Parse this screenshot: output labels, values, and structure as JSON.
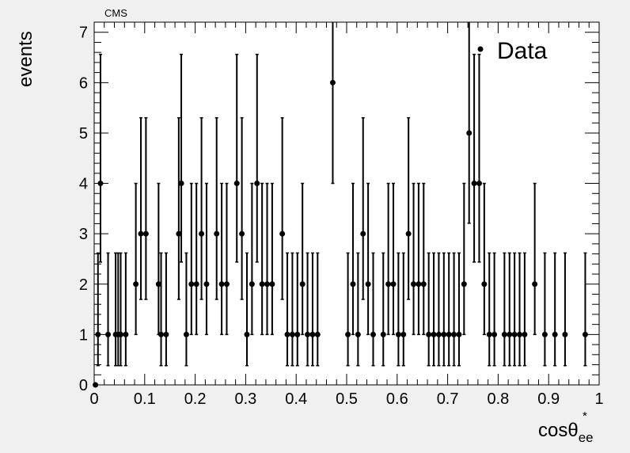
{
  "chart_data": {
    "type": "scatter",
    "experiment_label": "CMS",
    "ylabel": "events",
    "xlabel_main": "cosθ",
    "xlabel_sub": "ee",
    "xlabel_sup": "*",
    "legend": [
      "Data"
    ],
    "legend_position": "top-right",
    "xlim": [
      0,
      1
    ],
    "ylim": [
      0,
      7.2
    ],
    "x_ticks": [
      "0",
      "0.1",
      "0.2",
      "0.3",
      "0.4",
      "0.5",
      "0.6",
      "0.7",
      "0.8",
      "0.9",
      "1"
    ],
    "y_ticks": [
      "0",
      "1",
      "2",
      "3",
      "4",
      "5",
      "6",
      "7"
    ],
    "grid": false,
    "error_bars": "poisson",
    "series": [
      {
        "x": [
          0.0025,
          0.0075,
          0.0125,
          0.0275,
          0.0425,
          0.0475,
          0.0525,
          0.0625,
          0.0825,
          0.0925,
          0.1025,
          0.1275,
          0.1325,
          0.1425,
          0.1675,
          0.1725,
          0.1825,
          0.1925,
          0.2025,
          0.2125,
          0.2225,
          0.2425,
          0.2525,
          0.2625,
          0.2825,
          0.2925,
          0.3025,
          0.3125,
          0.3225,
          0.3325,
          0.3425,
          0.3525,
          0.3725,
          0.3825,
          0.3925,
          0.4025,
          0.4125,
          0.4225,
          0.4325,
          0.4425,
          0.4725,
          0.5025,
          0.5125,
          0.5225,
          0.5325,
          0.5425,
          0.5525,
          0.5725,
          0.5825,
          0.5925,
          0.6025,
          0.6125,
          0.6225,
          0.6325,
          0.6425,
          0.6525,
          0.6625,
          0.6725,
          0.6825,
          0.6925,
          0.7025,
          0.7125,
          0.7225,
          0.7325,
          0.7425,
          0.7525,
          0.7625,
          0.7725,
          0.7825,
          0.7925,
          0.8125,
          0.8225,
          0.8325,
          0.8425,
          0.8525,
          0.8725,
          0.8925,
          0.9125,
          0.9325,
          0.9725
        ],
        "y": [
          0,
          1,
          4,
          1,
          1,
          1,
          1,
          1,
          2,
          3,
          3,
          2,
          1,
          1,
          3,
          4,
          1,
          2,
          2,
          3,
          2,
          3,
          2,
          2,
          4,
          3,
          1,
          2,
          4,
          2,
          2,
          2,
          3,
          1,
          1,
          1,
          2,
          1,
          1,
          1,
          6,
          1,
          2,
          1,
          3,
          2,
          1,
          1,
          2,
          2,
          1,
          1,
          3,
          2,
          2,
          2,
          1,
          1,
          1,
          1,
          1,
          1,
          1,
          2,
          5,
          4,
          4,
          2,
          1,
          1,
          1,
          1,
          1,
          1,
          1,
          2,
          1,
          1,
          1,
          1
        ]
      }
    ]
  }
}
